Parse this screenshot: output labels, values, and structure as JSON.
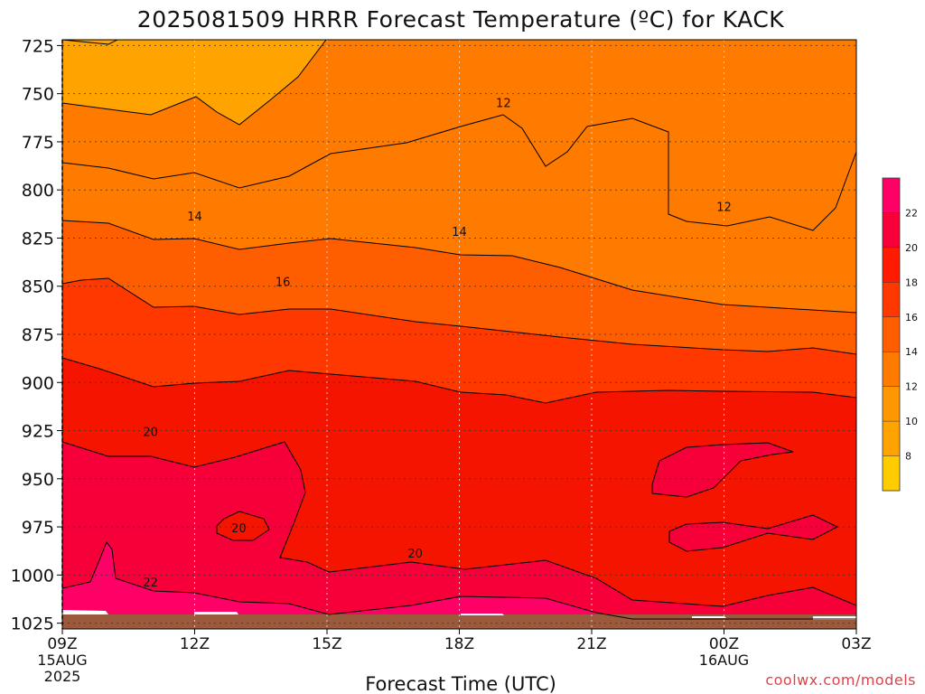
{
  "chart_data": {
    "type": "contour",
    "title": "2025081509 HRRR Forecast Temperature (ºC) for KACK",
    "xlabel": "Forecast Time (UTC)",
    "ylabel": "",
    "credit": "coolwx.com/models",
    "x_ticks": [
      {
        "label": "09Z",
        "sub": [
          "15AUG",
          "2025"
        ]
      },
      {
        "label": "12Z",
        "sub": []
      },
      {
        "label": "15Z",
        "sub": []
      },
      {
        "label": "18Z",
        "sub": []
      },
      {
        "label": "21Z",
        "sub": []
      },
      {
        "label": "00Z",
        "sub": [
          "16AUG"
        ]
      },
      {
        "label": "03Z",
        "sub": []
      }
    ],
    "x_range_hours": [
      0,
      18
    ],
    "y_ticks": [
      "725",
      "750",
      "775",
      "800",
      "825",
      "850",
      "875",
      "900",
      "925",
      "950",
      "975",
      "1000",
      "1025"
    ],
    "y_range": [
      722,
      1028
    ],
    "y_axis": "pressure (hPa), inverted",
    "grid": true,
    "contour_interval": 2,
    "contour_labels": [
      {
        "text": "12",
        "x_hr": 10.0,
        "p": 755
      },
      {
        "text": "12",
        "x_hr": 15.0,
        "p": 809
      },
      {
        "text": "14",
        "x_hr": 3.0,
        "p": 814
      },
      {
        "text": "14",
        "x_hr": 9.0,
        "p": 822
      },
      {
        "text": "16",
        "x_hr": 5.0,
        "p": 848
      },
      {
        "text": "20",
        "x_hr": 2.0,
        "p": 926
      },
      {
        "text": "20",
        "x_hr": 4.0,
        "p": 976
      },
      {
        "text": "20",
        "x_hr": 8.0,
        "p": 989
      },
      {
        "text": "22",
        "x_hr": 2.0,
        "p": 1004
      }
    ],
    "colorbar": {
      "labels": [
        "8",
        "10",
        "12",
        "14",
        "16",
        "18",
        "20",
        "22"
      ],
      "colors": [
        "#ffcc00",
        "#ffa300",
        "#ff9700",
        "#ff7b00",
        "#ff5e00",
        "#ff3800",
        "#ff1a00",
        "#f7003a",
        "#ff0066"
      ]
    },
    "fill_colors": {
      "10_12": "#ffa300",
      "12_14": "#ff7b00",
      "14_16": "#ff5e00",
      "16_18": "#ff3800",
      "18_20": "#f51400",
      "20_22": "#f7003a",
      "22_24": "#ff0066",
      "ground": "#9c5a3c"
    }
  }
}
